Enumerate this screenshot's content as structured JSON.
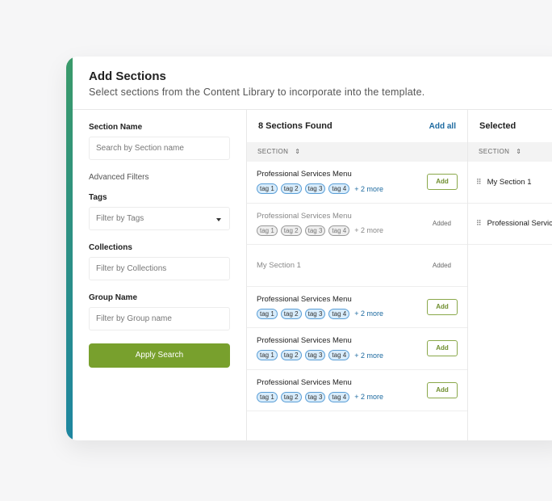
{
  "header": {
    "title": "Add Sections",
    "subtitle": "Select sections from the Content Library to incorporate into the template."
  },
  "filters": {
    "section_name_label": "Section Name",
    "section_name_placeholder": "Search by Section name",
    "advanced": "Advanced Filters",
    "tags_label": "Tags",
    "tags_placeholder": "Filter by Tags",
    "collections_label": "Collections",
    "collections_placeholder": "Filter by Collections",
    "group_label": "Group Name",
    "group_placeholder": "Filter by Group name",
    "apply": "Apply Search"
  },
  "results": {
    "title": "8 Sections Found",
    "add_all": "Add all",
    "column": "SECTION",
    "rows": [
      {
        "name": "Professional Services Menu",
        "tags": [
          "tag 1",
          "tag 2",
          "tag 3",
          "tag 4"
        ],
        "more": "+ 2 more",
        "status": "Add",
        "added": false
      },
      {
        "name": "Professional Services Menu",
        "tags": [
          "tag 1",
          "tag 2",
          "tag 3",
          "tag 4"
        ],
        "more": "+ 2 more",
        "status": "Added",
        "added": true
      },
      {
        "name": "My Section 1",
        "tags": [],
        "more": "",
        "status": "Added",
        "added": true
      },
      {
        "name": "Professional Services Menu",
        "tags": [
          "tag 1",
          "tag 2",
          "tag 3",
          "tag 4"
        ],
        "more": "+ 2 more",
        "status": "Add",
        "added": false
      },
      {
        "name": "Professional Services Menu",
        "tags": [
          "tag 1",
          "tag 2",
          "tag 3",
          "tag 4"
        ],
        "more": "+ 2 more",
        "status": "Add",
        "added": false
      },
      {
        "name": "Professional Services Menu",
        "tags": [
          "tag 1",
          "tag 2",
          "tag 3",
          "tag 4"
        ],
        "more": "+ 2 more",
        "status": "Add",
        "added": false
      }
    ]
  },
  "selected": {
    "title": "Selected",
    "column": "SECTION",
    "items": [
      "My Section 1",
      "Professional Services Menu"
    ]
  },
  "colors": {
    "accent": "#78a02d",
    "link": "#1d6aa0"
  }
}
